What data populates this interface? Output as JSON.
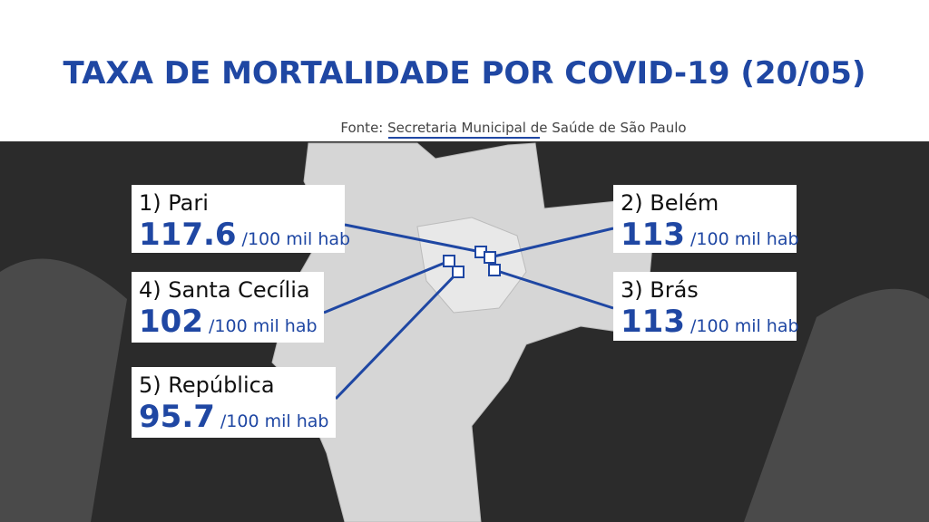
{
  "header": {
    "title": "TAXA DE MORTALIDADE POR COVID-19 (20/05)",
    "source": "Fonte: Secretaria Municipal de Saúde de São Paulo"
  },
  "items": [
    {
      "label": "1) Pari",
      "value": 117.6,
      "unit": "/100 mil hab"
    },
    {
      "label": "2) Belém",
      "value": 113,
      "unit": "/100 mil hab"
    },
    {
      "label": "3) Brás",
      "value": 113,
      "unit": "/100 mil hab"
    },
    {
      "label": "4) Santa Cecília",
      "value": 102,
      "unit": "/100 mil hab"
    },
    {
      "label": "5) República",
      "value": 95.7,
      "unit": "/100 mil hab"
    }
  ]
}
